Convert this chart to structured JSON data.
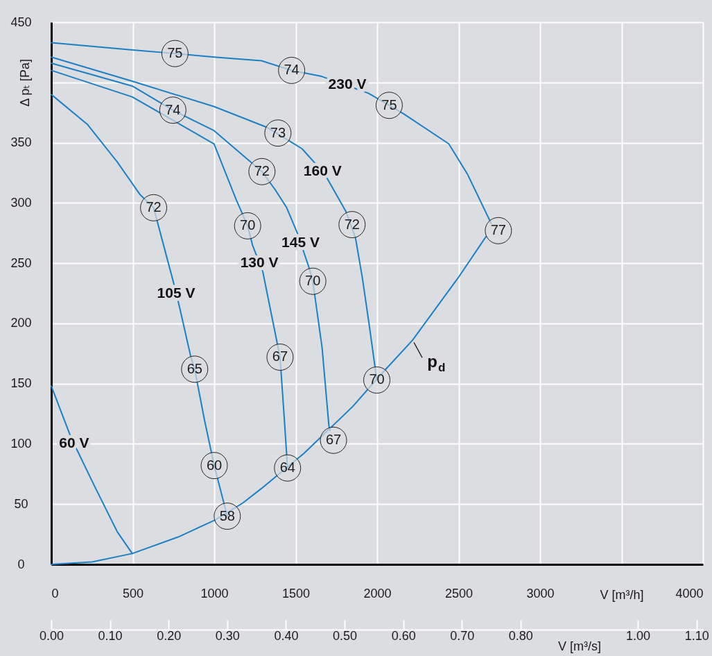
{
  "chart_data": {
    "type": "line",
    "xlabel": "V [m³/h]",
    "ylabel": "Δ pₜ [Pa]",
    "x2label": "V [m³/s]",
    "xlim": [
      0,
      4000
    ],
    "xticks": [
      0,
      500,
      1000,
      1500,
      2000,
      2500,
      3000,
      {
        "value": 3500,
        "label": null
      },
      4000
    ],
    "ylim": [
      0,
      450
    ],
    "yticks": [
      0,
      50,
      100,
      150,
      200,
      250,
      300,
      350,
      {
        "value": 400,
        "label": null
      },
      450
    ],
    "x2lim": [
      0,
      1.111
    ],
    "x2ticks": [
      {
        "value": 0,
        "label": "0.00"
      },
      {
        "value": 0.1,
        "label": "0.10"
      },
      {
        "value": 0.2,
        "label": "0.20"
      },
      {
        "value": 0.3,
        "label": "0.30"
      },
      {
        "value": 0.4,
        "label": "0.40"
      },
      {
        "value": 0.5,
        "label": "0.50"
      },
      {
        "value": 0.6,
        "label": "0.60"
      },
      {
        "value": 0.7,
        "label": "0.70"
      },
      {
        "value": 0.8,
        "label": "0.80"
      },
      {
        "value": 1.0,
        "label": "1.00"
      },
      {
        "value": 1.1,
        "label": "1.10"
      }
    ],
    "grid": true,
    "series": [
      {
        "color": "#1a80c6",
        "x": [
          0,
          500,
          759,
          1000,
          1290,
          1475,
          1660,
          1947,
          2074,
          2162,
          2440,
          2554,
          2700
        ],
        "values": [
          433,
          427,
          424,
          421,
          418,
          410,
          405,
          391,
          381,
          374,
          349,
          324,
          283
        ]
      },
      {
        "color": "#1a80c6",
        "x": [
          0,
          497,
          999,
          1319,
          1467,
          1539,
          1678,
          1808,
          1867,
          1909,
          1951,
          1998
        ],
        "values": [
          421,
          401,
          380,
          363,
          351,
          345,
          324,
          293,
          271,
          238,
          199,
          153
        ]
      },
      {
        "color": "#1a80c6",
        "x": [
          0,
          497,
          746,
          999,
          1293,
          1374,
          1445,
          1513,
          1585,
          1605,
          1662,
          1704,
          1711
        ],
        "values": [
          416,
          397,
          377,
          360,
          326,
          311,
          296,
          274,
          245,
          235,
          180,
          115,
          111
        ]
      },
      {
        "color": "#1a80c6",
        "x": [
          0,
          497,
          999,
          1134,
          1205,
          1235,
          1298,
          1374,
          1404,
          1429,
          1450
        ],
        "values": [
          410,
          388,
          349,
          303,
          281,
          265,
          243,
          192,
          172,
          123,
          80
        ]
      },
      {
        "color": "#1a80c6",
        "x": [
          0,
          223,
          405,
          544,
          628,
          750,
          788,
          855,
          880,
          940,
          1000,
          1080
        ],
        "values": [
          390,
          365,
          334,
          307,
          296,
          234,
          213,
          173,
          162,
          120,
          82,
          40
        ]
      },
      {
        "color": "#1a80c6",
        "x": [
          0,
          122,
          265,
          405,
          497
        ],
        "values": [
          148,
          105,
          65,
          27,
          9
        ]
      },
      {
        "color": "#1a80c6",
        "x": [
          0,
          250,
          497,
          784,
          1007,
          1176,
          1290,
          1550,
          1850,
          2019,
          2217,
          2498,
          2668
        ],
        "values": [
          0,
          2,
          9,
          23,
          37,
          51,
          63,
          92,
          131,
          157,
          186,
          238,
          272
        ]
      }
    ],
    "annotations": [
      {
        "text": "230 V",
        "x": 1817,
        "y": 398
      },
      {
        "text": "160 V",
        "x": 1665,
        "y": 326
      },
      {
        "text": "145 V",
        "x": 1530,
        "y": 267
      },
      {
        "text": "130 V",
        "x": 1277,
        "y": 250
      },
      {
        "text": "105 V",
        "x": 766,
        "y": 225
      },
      {
        "text": "60 V",
        "x": 140,
        "y": 100
      },
      {
        "text": "p$_{d}$",
        "x": 2217,
        "y": 186
      },
      {
        "text": "75",
        "x": 759,
        "y": 424
      },
      {
        "text": "74",
        "x": 1475,
        "y": 410
      },
      {
        "text": "75",
        "x": 2074,
        "y": 381
      },
      {
        "text": "77",
        "x": 2744,
        "y": 277
      },
      {
        "text": "73",
        "x": 1391,
        "y": 358
      },
      {
        "text": "72",
        "x": 1846,
        "y": 282
      },
      {
        "text": "70",
        "x": 1998,
        "y": 153
      },
      {
        "text": "74",
        "x": 746,
        "y": 377
      },
      {
        "text": "72",
        "x": 1293,
        "y": 326
      },
      {
        "text": "70",
        "x": 1605,
        "y": 235
      },
      {
        "text": "67",
        "x": 1732,
        "y": 103
      },
      {
        "text": "70",
        "x": 1205,
        "y": 281
      },
      {
        "text": "67",
        "x": 1404,
        "y": 172
      },
      {
        "text": "64",
        "x": 1450,
        "y": 80
      },
      {
        "text": "72",
        "x": 628,
        "y": 296
      },
      {
        "text": "65",
        "x": 880,
        "y": 162
      },
      {
        "text": "60",
        "x": 1000,
        "y": 82
      },
      {
        "text": "58",
        "x": 1080,
        "y": 40
      }
    ]
  }
}
